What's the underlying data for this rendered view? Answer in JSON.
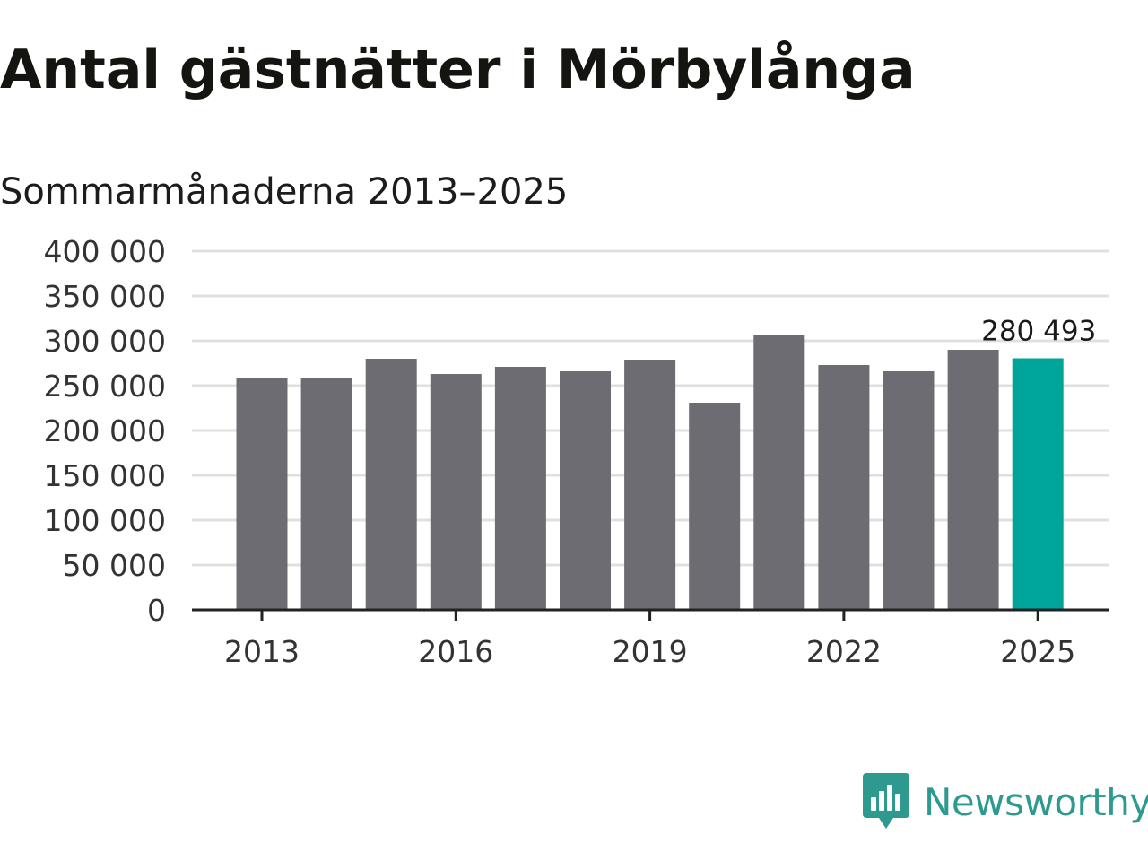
{
  "header": {
    "title": "Antal gästnätter i Mörbylånga",
    "subtitle": "Sommarmånaderna 2013–2025"
  },
  "brand": {
    "name": "Newsworthy",
    "logo_icon": "bar-chart-speech-bubble-icon",
    "color": "#2e9a8f"
  },
  "colors": {
    "bar": "#6d6c72",
    "highlight": "#00a59a",
    "grid": "#e0e0e0",
    "axis": "#222222"
  },
  "chart_data": {
    "type": "bar",
    "title": "Antal gästnätter i Mörbylånga",
    "subtitle": "Sommarmånaderna 2013–2025",
    "xlabel": "",
    "ylabel": "",
    "categories": [
      "2013",
      "2014",
      "2015",
      "2016",
      "2017",
      "2018",
      "2019",
      "2020",
      "2021",
      "2022",
      "2023",
      "2024",
      "2025"
    ],
    "values": [
      258000,
      259000,
      280000,
      263000,
      271000,
      266000,
      279000,
      231000,
      307000,
      273000,
      266000,
      290000,
      280493
    ],
    "highlight_index": 12,
    "data_labels": [
      {
        "category": "2025",
        "text": "280 493"
      }
    ],
    "ylim": [
      0,
      400000
    ],
    "yticks": [
      0,
      50000,
      100000,
      150000,
      200000,
      250000,
      300000,
      350000,
      400000
    ],
    "ytick_labels": [
      "0",
      "50 000",
      "100 000",
      "150 000",
      "200 000",
      "250 000",
      "300 000",
      "350 000",
      "400 000"
    ],
    "xticks": [
      "2013",
      "2016",
      "2019",
      "2022",
      "2025"
    ],
    "grid": true,
    "legend": "none"
  }
}
